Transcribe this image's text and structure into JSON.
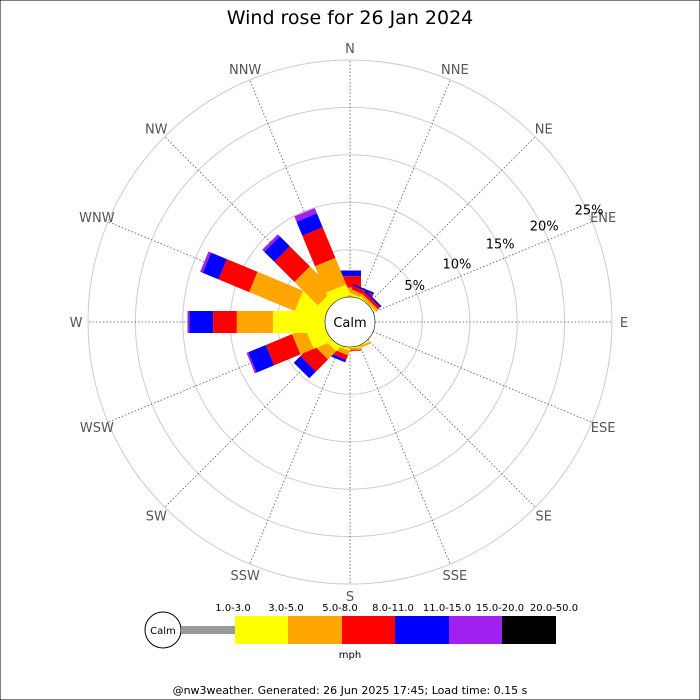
{
  "chart_data": {
    "type": "wind-rose",
    "title": "Wind rose for 26 Jan 2024",
    "directions": [
      "N",
      "NNE",
      "NE",
      "ENE",
      "E",
      "ESE",
      "SE",
      "SSE",
      "S",
      "SSW",
      "SW",
      "WSW",
      "W",
      "WNW",
      "NW",
      "NNW"
    ],
    "radial_unit": "%",
    "radial_max": 25,
    "radial_ticks": [
      5,
      10,
      15,
      20,
      25
    ],
    "radial_tick_labels": [
      "5%",
      "10%",
      "15%",
      "20%",
      "25%"
    ],
    "calm_label": "Calm",
    "speed_unit": "mph",
    "speed_bins": [
      {
        "label": "1.0-3.0",
        "color": "#999999"
      },
      {
        "label": "3.0-5.0",
        "color": "#ffff00"
      },
      {
        "label": "5.0-8.0",
        "color": "#ffa500"
      },
      {
        "label": "8.0-11.0",
        "color": "#ff0000"
      },
      {
        "label": "11.0-15.0",
        "color": "#0000ff"
      },
      {
        "label": "15.0-20.0",
        "color": "#a020f0"
      },
      {
        "label": "20.0-50.0",
        "color": "#000000"
      }
    ],
    "series": [
      {
        "direction": "N",
        "values": [
          0.0,
          0.0,
          1.0,
          1.2,
          0.6,
          0.0,
          0.0
        ]
      },
      {
        "direction": "NNE",
        "values": [
          0.0,
          0.2,
          0.4,
          0.4,
          0.2,
          0.0,
          0.0
        ]
      },
      {
        "direction": "NE",
        "values": [
          0.0,
          0.1,
          0.3,
          0.3,
          0.2,
          0.0,
          0.0
        ]
      },
      {
        "direction": "ENE",
        "values": [
          0.0,
          0.0,
          0.0,
          0.0,
          0.0,
          0.0,
          0.0
        ]
      },
      {
        "direction": "E",
        "values": [
          0.0,
          0.0,
          0.0,
          0.0,
          0.0,
          0.0,
          0.0
        ]
      },
      {
        "direction": "ESE",
        "values": [
          0.0,
          0.0,
          0.0,
          0.0,
          0.0,
          0.0,
          0.0
        ]
      },
      {
        "direction": "SE",
        "values": [
          0.0,
          0.0,
          0.0,
          0.0,
          0.0,
          0.0,
          0.0
        ]
      },
      {
        "direction": "SSE",
        "values": [
          0.0,
          0.1,
          0.2,
          0.0,
          0.0,
          0.0,
          0.0
        ]
      },
      {
        "direction": "S",
        "values": [
          0.0,
          0.1,
          0.2,
          0.1,
          0.0,
          0.0,
          0.0
        ]
      },
      {
        "direction": "SSW",
        "values": [
          0.0,
          0.2,
          0.5,
          0.5,
          0.3,
          0.0,
          0.0
        ]
      },
      {
        "direction": "SW",
        "values": [
          0.0,
          0.6,
          1.2,
          1.8,
          1.0,
          0.0,
          0.0
        ]
      },
      {
        "direction": "WSW",
        "values": [
          0.0,
          2.0,
          1.5,
          3.0,
          2.0,
          0.2,
          0.0
        ]
      },
      {
        "direction": "W",
        "values": [
          0.0,
          5.5,
          3.8,
          2.5,
          2.5,
          0.2,
          0.0
        ]
      },
      {
        "direction": "WNW",
        "values": [
          0.0,
          3.2,
          5.2,
          3.5,
          1.8,
          0.3,
          0.0
        ]
      },
      {
        "direction": "NW",
        "values": [
          0.0,
          1.0,
          3.5,
          3.0,
          1.5,
          0.3,
          0.0
        ]
      },
      {
        "direction": "NNW",
        "values": [
          0.0,
          1.2,
          3.0,
          3.5,
          1.6,
          0.6,
          0.0
        ]
      }
    ]
  },
  "footer": "@nw3weather. Generated: 26 Jun 2025 17:45; Load time: 0.15 s"
}
